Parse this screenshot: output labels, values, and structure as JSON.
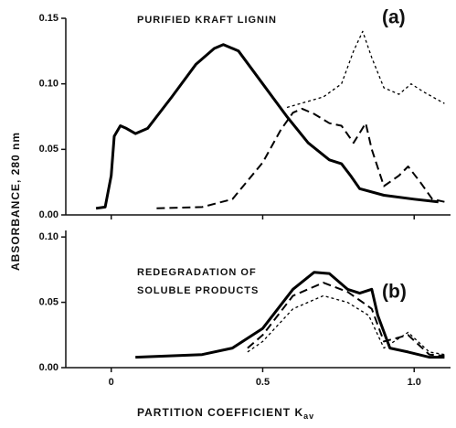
{
  "ylabel": "ABSORBANCE, 280 nm",
  "chart_data": [
    {
      "type": "line",
      "title": "PURIFIED KRAFT LIGNIN",
      "panel_label": "(a)",
      "xlim": [
        -0.15,
        1.12
      ],
      "ylim": [
        0,
        0.15
      ],
      "yticks": [
        {
          "value": 0,
          "label": "0.00"
        },
        {
          "value": 0.05,
          "label": "0.05"
        },
        {
          "value": 0.1,
          "label": "0.10"
        },
        {
          "value": 0.15,
          "label": "0.15"
        }
      ],
      "series": [
        {
          "color": "#000",
          "dash": "solid",
          "x": [
            -0.05,
            -0.02,
            0,
            0.01,
            0.03,
            0.05,
            0.08,
            0.12,
            0.2,
            0.28,
            0.34,
            0.37,
            0.42,
            0.5,
            0.58,
            0.65,
            0.72,
            0.76,
            0.79,
            0.82,
            0.9,
            1.0,
            1.08
          ],
          "values": [
            0.005,
            0.006,
            0.03,
            0.06,
            0.068,
            0.066,
            0.062,
            0.066,
            0.09,
            0.115,
            0.127,
            0.13,
            0.125,
            0.1,
            0.075,
            0.055,
            0.042,
            0.039,
            0.03,
            0.02,
            0.015,
            0.012,
            0.01
          ]
        },
        {
          "color": "#000",
          "dash": "dashed",
          "x": [
            0.15,
            0.3,
            0.4,
            0.5,
            0.56,
            0.6,
            0.63,
            0.67,
            0.72,
            0.76,
            0.8,
            0.84,
            0.86,
            0.9,
            0.95,
            0.98,
            1.02,
            1.06,
            1.1
          ],
          "values": [
            0.005,
            0.006,
            0.012,
            0.04,
            0.065,
            0.078,
            0.081,
            0.077,
            0.07,
            0.068,
            0.055,
            0.07,
            0.05,
            0.022,
            0.03,
            0.037,
            0.025,
            0.012,
            0.01
          ]
        },
        {
          "color": "#000",
          "dash": "dotted",
          "x": [
            0.58,
            0.7,
            0.76,
            0.8,
            0.83,
            0.86,
            0.9,
            0.95,
            0.99,
            1.03,
            1.1
          ],
          "values": [
            0.082,
            0.09,
            0.1,
            0.125,
            0.14,
            0.12,
            0.097,
            0.092,
            0.1,
            0.094,
            0.085
          ]
        }
      ]
    },
    {
      "type": "line",
      "title": [
        "REDEGRADATION OF",
        "SOLUBLE PRODUCTS"
      ],
      "panel_label": "(b)",
      "xlabel": "PARTITION COEFFICIENT K",
      "xlabel_subscript": "av",
      "xlim": [
        -0.15,
        1.12
      ],
      "ylim": [
        0,
        0.105
      ],
      "xticks": [
        0,
        0.5,
        {
          "value": 1,
          "label": "1.0"
        }
      ],
      "yticks": [
        {
          "value": 0,
          "label": "0.00"
        },
        {
          "value": 0.05,
          "label": "0.05"
        },
        {
          "value": 0.1,
          "label": "0.10"
        }
      ],
      "series": [
        {
          "color": "#000",
          "dash": "solid",
          "x": [
            0.08,
            0.3,
            0.4,
            0.5,
            0.6,
            0.67,
            0.72,
            0.78,
            0.82,
            0.86,
            0.88,
            0.92,
            0.98,
            1.05,
            1.1
          ],
          "values": [
            0.008,
            0.01,
            0.015,
            0.03,
            0.06,
            0.073,
            0.072,
            0.06,
            0.057,
            0.06,
            0.04,
            0.015,
            0.012,
            0.008,
            0.008
          ]
        },
        {
          "color": "#000",
          "dash": "dashed",
          "x": [
            0.45,
            0.5,
            0.6,
            0.7,
            0.78,
            0.83,
            0.86,
            0.9,
            0.98,
            1.05,
            1.1
          ],
          "values": [
            0.015,
            0.025,
            0.055,
            0.065,
            0.058,
            0.05,
            0.045,
            0.02,
            0.025,
            0.01,
            0.009
          ]
        },
        {
          "color": "#000",
          "dash": "dotted",
          "x": [
            0.45,
            0.5,
            0.6,
            0.7,
            0.78,
            0.85,
            0.9,
            0.98,
            1.05,
            1.1
          ],
          "values": [
            0.012,
            0.02,
            0.045,
            0.055,
            0.05,
            0.04,
            0.015,
            0.027,
            0.012,
            0.01
          ]
        }
      ]
    }
  ]
}
